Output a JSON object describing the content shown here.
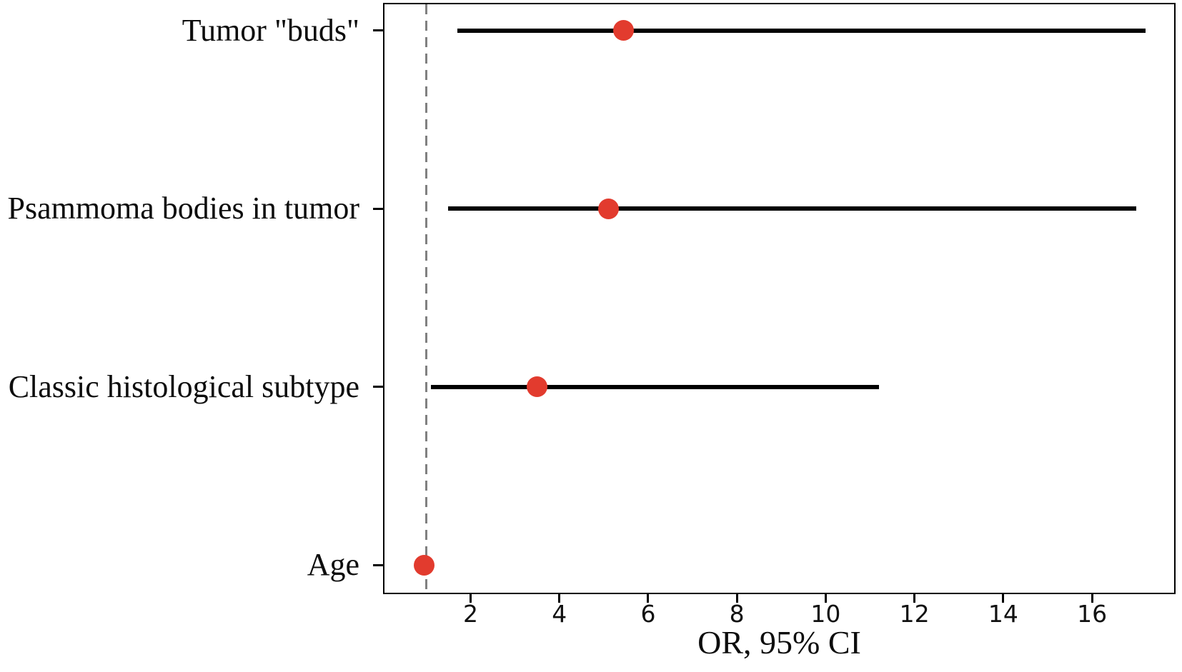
{
  "chart_data": {
    "type": "scatter",
    "subtype": "forest-plot-with-error-bars",
    "title": "",
    "xlabel": "OR, 95% CI",
    "ylabel": "",
    "categories": [
      "Tumor \"buds\"",
      "Psammoma bodies in tumor",
      "Classic histological subtype",
      "Age"
    ],
    "points": [
      {
        "label": "Tumor \"buds\"",
        "or": 5.45,
        "ci_low": 1.7,
        "ci_high": 17.2
      },
      {
        "label": "Psammoma bodies in tumor",
        "or": 5.1,
        "ci_low": 1.5,
        "ci_high": 17.0
      },
      {
        "label": "Classic histological subtype",
        "or": 3.5,
        "ci_low": 1.1,
        "ci_high": 11.2
      },
      {
        "label": "Age",
        "or": 0.95,
        "ci_low": 0.9,
        "ci_high": 1.0
      }
    ],
    "x_ticks": [
      2,
      4,
      6,
      8,
      10,
      12,
      14,
      16
    ],
    "xlim": [
      0.06,
      17.85
    ],
    "reference_line_x": 1,
    "grid": false,
    "legend": "none",
    "marker_color": "#e23b2e",
    "ci_line_color": "#000000",
    "reference_line_color": "#808080",
    "axis_color": "#000000"
  }
}
